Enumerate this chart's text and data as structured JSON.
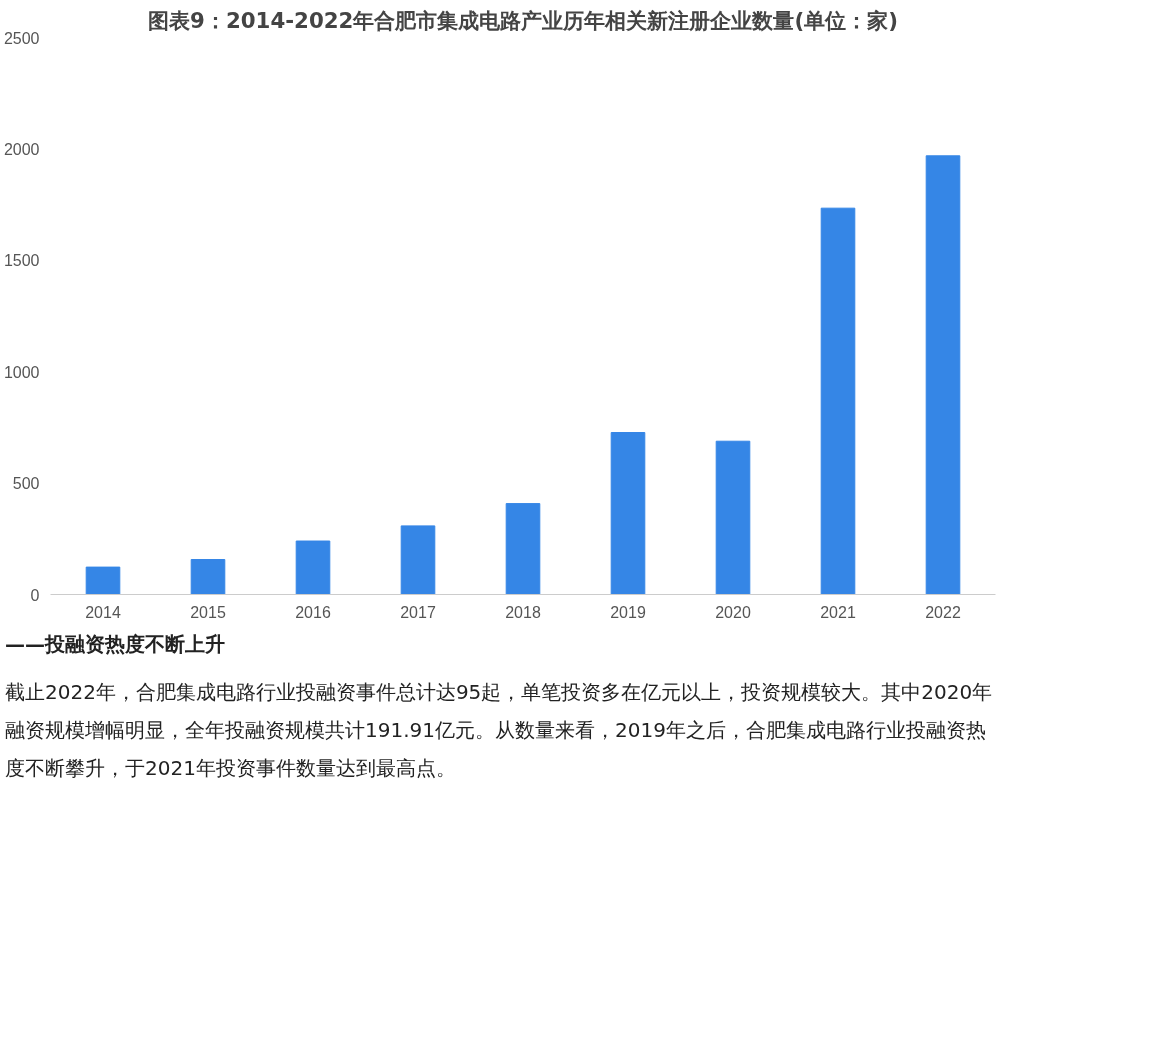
{
  "chart_data": {
    "type": "bar",
    "title": "图表9：2014-2022年合肥市集成电路产业历年相关新注册企业数量(单位：家)",
    "categories": [
      "2014",
      "2015",
      "2016",
      "2017",
      "2018",
      "2019",
      "2020",
      "2021",
      "2022"
    ],
    "values": [
      123,
      157,
      240,
      308,
      408,
      727,
      688,
      1734,
      1969
    ],
    "color": "#3586e6",
    "ylim": [
      0,
      2500
    ],
    "yticks": [
      0,
      500,
      1000,
      1500,
      2000,
      2500
    ],
    "grid": false,
    "annotations": [
      "——投融资热度不断上升",
      "截止2022年，合肥集成电路行业投融资事件总计达95起，单笔投资多在亿元以上，投资规模较大。其中2020年融资规模增幅明显，全年投融资规模共计191.91亿元。从数量来看，2019年之后，合肥集成电路行业投融资热度不断攀升，于2021年投资事件数量达到最高点。"
    ]
  }
}
